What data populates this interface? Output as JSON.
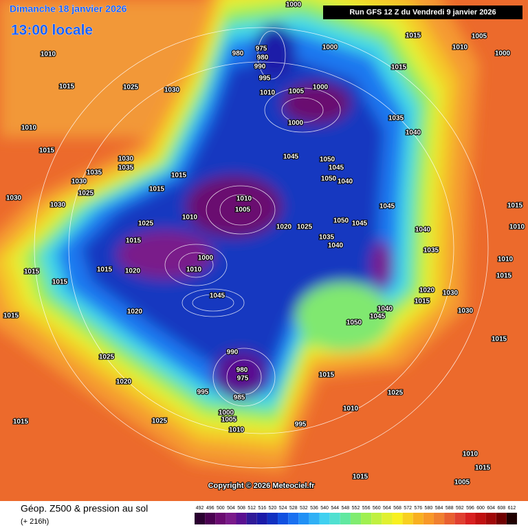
{
  "header": {
    "date": "Dimanche 18 janvier 2026",
    "time": "13:00 locale",
    "run": "Run GFS 12 Z du Vendredi 9 janvier 2026"
  },
  "map": {
    "isobar_labels": [
      "1000",
      "1015",
      "1010",
      "1005",
      "1000",
      "980",
      "975",
      "980",
      "990",
      "995",
      "1000",
      "1015",
      "1010",
      "1015",
      "1025",
      "1030",
      "1010",
      "1005",
      "1000",
      "1000",
      "1035",
      "1040",
      "1010",
      "1015",
      "1030",
      "1035",
      "1035",
      "1030",
      "1015",
      "1045",
      "1050",
      "1045",
      "1050",
      "1040",
      "1015",
      "1025",
      "1030",
      "1030",
      "1010",
      "1005",
      "1010",
      "1025",
      "1020",
      "1025",
      "1050",
      "1045",
      "1045",
      "1040",
      "1015",
      "1010",
      "1035",
      "1040",
      "1015",
      "1035",
      "1000",
      "1010",
      "1015",
      "1020",
      "1015",
      "1015",
      "1010",
      "1015",
      "1020",
      "1030",
      "1015",
      "1045",
      "1020",
      "1040",
      "1045",
      "1050",
      "1030",
      "1015",
      "1015",
      "990",
      "980",
      "975",
      "985",
      "1025",
      "1020",
      "995",
      "1015",
      "1025",
      "1000",
      "1005",
      "1010",
      "1025",
      "1015",
      "1010",
      "995",
      "1010",
      "1015",
      "1005",
      "1015"
    ]
  },
  "copyright": "Copyright © 2026 Meteociel.fr",
  "legend": {
    "title": "Géop. Z500 & pression au sol",
    "lead": "(+ 216h)",
    "scale": {
      "values": [
        "492",
        "496",
        "500",
        "504",
        "508",
        "512",
        "516",
        "520",
        "524",
        "528",
        "532",
        "536",
        "540",
        "544",
        "548",
        "552",
        "556",
        "560",
        "564",
        "568",
        "572",
        "576",
        "580",
        "584",
        "588",
        "592",
        "596",
        "600",
        "604",
        "608",
        "612"
      ],
      "colors": [
        "#2a0030",
        "#4a0050",
        "#6a0a70",
        "#7a1a8a",
        "#5a1090",
        "#301a98",
        "#1a1aa8",
        "#1030c0",
        "#1050e0",
        "#1a70f0",
        "#2090f5",
        "#30b0f5",
        "#40d0f0",
        "#50e0d0",
        "#60e8a0",
        "#80ec70",
        "#a0f050",
        "#c0f040",
        "#e0f030",
        "#f8f020",
        "#f8d020",
        "#f8b020",
        "#f89828",
        "#f08030",
        "#e86030",
        "#e04030",
        "#d82020",
        "#c01010",
        "#a00808",
        "#700000",
        "#200000"
      ]
    }
  }
}
